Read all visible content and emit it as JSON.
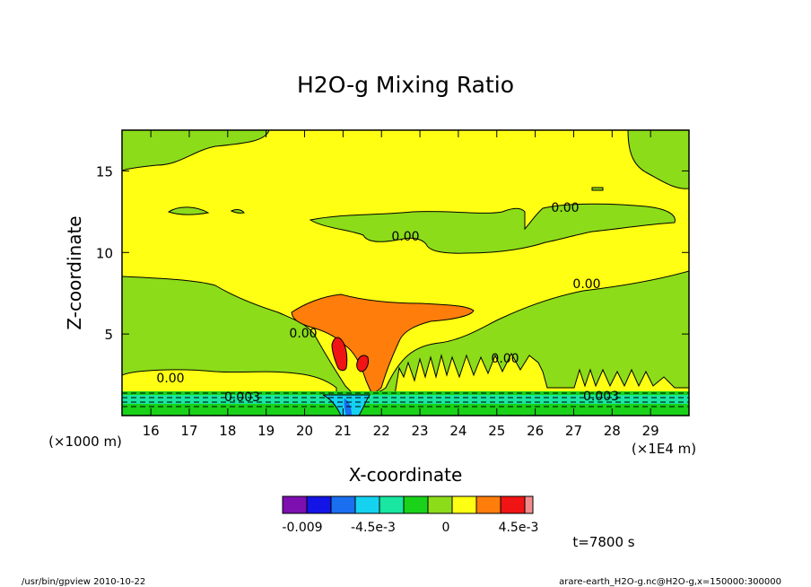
{
  "chart_data": {
    "type": "heatmap",
    "title": "H2O-g Mixing Ratio",
    "xlabel": "X-coordinate",
    "ylabel": "Z-coordinate",
    "x_unit": "(×1E4 m)",
    "y_unit": "(×1000 m)",
    "x_ticks": [
      "16",
      "17",
      "18",
      "19",
      "20",
      "21",
      "22",
      "23",
      "24",
      "25",
      "26",
      "27",
      "28",
      "29"
    ],
    "y_ticks": [
      "5",
      "10",
      "15"
    ],
    "xlim": [
      15.25,
      30
    ],
    "ylim": [
      0,
      17.5
    ],
    "contour_labels": [
      "0.00",
      "0.00",
      "0.00",
      "0.00",
      "0.00",
      "0.00",
      "0.003",
      "0.003"
    ],
    "colorbar": {
      "tick_labels": [
        "-0.009",
        "-4.5e-3",
        "0",
        "4.5e-3"
      ],
      "colors": [
        "#7d0fb0",
        "#1414e6",
        "#1a6ef0",
        "#14d2f0",
        "#19e6a0",
        "#19d219",
        "#8cdc19",
        "#ffff14",
        "#ff7d0a",
        "#f01414",
        "#f08c8c"
      ]
    },
    "time_label": "t=7800 s"
  },
  "footer": {
    "left": "/usr/bin/gpview  2010-10-22",
    "right": "arare-earth_H2O-g.nc@H2O-g,x=150000:300000"
  }
}
